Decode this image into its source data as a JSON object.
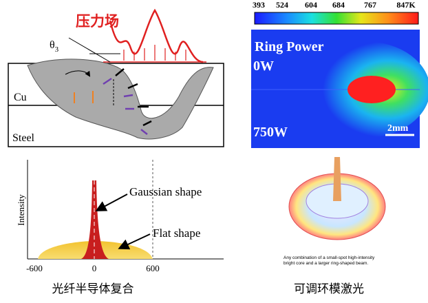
{
  "weld_panel": {
    "pressure_label": "压力场",
    "angle": {
      "symbol": "θ",
      "subscript": "3"
    },
    "upper_layer": "Cu",
    "lower_layer": "Steel"
  },
  "heat_panel": {
    "colorbar_labels": [
      "393",
      "524",
      "604",
      "684",
      "767",
      "847K"
    ],
    "title": "Ring Power",
    "top_power": "0W",
    "bottom_power": "750W",
    "scale": "2mm"
  },
  "profile_panel": {
    "y_label": "Intensity",
    "gaussian_label": "Gaussian shape",
    "flat_label": "Flat shape",
    "x_tick_labels": [
      "-600",
      "0",
      "600"
    ]
  },
  "ring_panel": {
    "caption_line1": "Any combination of a small-spot high-intensity",
    "caption_line2": "bright core and a larger ring-shaped beam."
  },
  "captions": {
    "left": "光纤半导体复合",
    "right": "可调环模激光"
  }
}
